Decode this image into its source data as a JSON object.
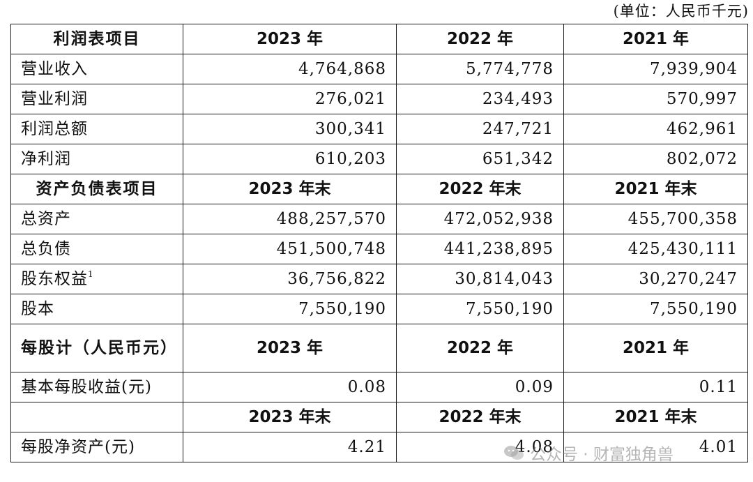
{
  "unit_note": "(单位：人民币千元)",
  "income": {
    "header": {
      "label": "利润表项目",
      "y1": "2023 年",
      "y2": "2022 年",
      "y3": "2021 年"
    },
    "rows": [
      {
        "label": "营业收入",
        "y1": "4,764,868",
        "y2": "5,774,778",
        "y3": "7,939,904"
      },
      {
        "label": "营业利润",
        "y1": "276,021",
        "y2": "234,493",
        "y3": "570,997"
      },
      {
        "label": "利润总额",
        "y1": "300,341",
        "y2": "247,721",
        "y3": "462,961"
      },
      {
        "label": "净利润",
        "y1": "610,203",
        "y2": "651,342",
        "y3": "802,072"
      }
    ]
  },
  "balance": {
    "header": {
      "label": "资产负债表项目",
      "y1": "2023 年末",
      "y2": "2022 年末",
      "y3": "2021 年末"
    },
    "rows": [
      {
        "label": "总资产",
        "y1": "488,257,570",
        "y2": "472,052,938",
        "y3": "455,700,358"
      },
      {
        "label": "总负债",
        "y1": "451,500,748",
        "y2": "441,238,895",
        "y3": "425,430,111"
      },
      {
        "label": "股东权益",
        "footnote": "1",
        "y1": "36,756,822",
        "y2": "30,814,043",
        "y3": "30,270,247"
      },
      {
        "label": "股本",
        "y1": "7,550,190",
        "y2": "7,550,190",
        "y3": "7,550,190"
      }
    ]
  },
  "per_share": {
    "header": {
      "label": "每股计（人民币元）",
      "y1": "2023 年",
      "y2": "2022 年",
      "y3": "2021 年"
    },
    "eps": {
      "label": "基本每股收益(元)",
      "y1": "0.08",
      "y2": "0.09",
      "y3": "0.11"
    },
    "header2": {
      "label": "",
      "y1": "2023 年末",
      "y2": "2022 年末",
      "y3": "2021 年末"
    },
    "bvps": {
      "label": "每股净资产(元)",
      "y1": "4.21",
      "y2": "4.08",
      "y3": "4.01"
    }
  },
  "watermark": {
    "text": "公众号 · 财富独角兽",
    "icon": "wechat-icon"
  }
}
